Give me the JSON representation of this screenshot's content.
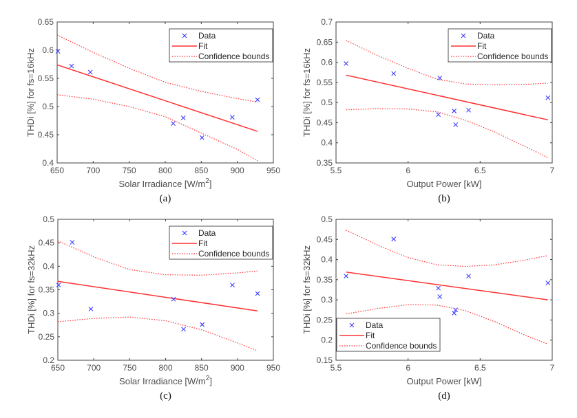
{
  "chart_data": [
    {
      "type": "scatter",
      "panel_caption": "(a)",
      "xlabel": "Solar Irradiance [W/m",
      "xlabel_superscript": "2",
      "xlabel_suffix": "]",
      "ylabel": "THDi [%] for fs=16kHz",
      "xlim": [
        650,
        950
      ],
      "ylim": [
        0.4,
        0.65
      ],
      "xticks": [
        "650",
        "700",
        "750",
        "800",
        "850",
        "900",
        "950"
      ],
      "yticks": [
        "0.4",
        "0.45",
        "0.5",
        "0.55",
        "0.6",
        "0.65"
      ],
      "legend": {
        "placement": "top-right",
        "entries": [
          "Data",
          "Fit",
          "Confidence bounds"
        ]
      },
      "data": {
        "x": [
          651,
          670,
          696,
          811,
          825,
          851,
          893,
          928
        ],
        "y": [
          0.598,
          0.572,
          0.561,
          0.47,
          0.48,
          0.445,
          0.481,
          0.512
        ]
      },
      "fit": {
        "x": [
          650,
          928
        ],
        "y": [
          0.574,
          0.456
        ]
      },
      "upper_bound": {
        "x": [
          650,
          700,
          750,
          800,
          850,
          900,
          928
        ],
        "y": [
          0.627,
          0.596,
          0.568,
          0.543,
          0.527,
          0.514,
          0.508
        ]
      },
      "lower_bound": {
        "x": [
          650,
          700,
          750,
          800,
          850,
          900,
          928
        ],
        "y": [
          0.521,
          0.513,
          0.5,
          0.482,
          0.453,
          0.424,
          0.404
        ]
      }
    },
    {
      "type": "scatter",
      "panel_caption": "(b)",
      "xlabel": "Output Power [kW]",
      "ylabel": "THDi [%] for fs=16kHz",
      "xlim": [
        5.5,
        7
      ],
      "ylim": [
        0.35,
        0.7
      ],
      "xticks": [
        "5.5",
        "6",
        "6.5",
        "7"
      ],
      "yticks": [
        "0.35",
        "0.4",
        "0.45",
        "0.5",
        "0.55",
        "0.6",
        "0.65",
        "0.7"
      ],
      "legend": {
        "placement": "top-right",
        "entries": [
          "Data",
          "Fit",
          "Confidence bounds"
        ]
      },
      "data": {
        "x": [
          5.57,
          5.9,
          6.22,
          6.21,
          6.32,
          6.33,
          6.42,
          6.97
        ],
        "y": [
          0.597,
          0.572,
          0.561,
          0.47,
          0.479,
          0.445,
          0.481,
          0.512
        ]
      },
      "fit": {
        "x": [
          5.57,
          6.97
        ],
        "y": [
          0.568,
          0.457
        ]
      },
      "upper_bound": {
        "x": [
          5.57,
          5.8,
          6.0,
          6.2,
          6.4,
          6.6,
          6.8,
          6.97
        ],
        "y": [
          0.654,
          0.615,
          0.585,
          0.558,
          0.546,
          0.544,
          0.545,
          0.548
        ]
      },
      "lower_bound": {
        "x": [
          5.57,
          5.8,
          6.0,
          6.2,
          6.4,
          6.6,
          6.8,
          6.97
        ],
        "y": [
          0.482,
          0.485,
          0.484,
          0.477,
          0.456,
          0.427,
          0.393,
          0.363
        ]
      }
    },
    {
      "type": "scatter",
      "panel_caption": "(c)",
      "xlabel": "Solar Irradiance [W/m",
      "xlabel_superscript": "2",
      "xlabel_suffix": "]",
      "ylabel": "THDi [%] for fs=32kHz",
      "xlim": [
        650,
        950
      ],
      "ylim": [
        0.2,
        0.5
      ],
      "xticks": [
        "650",
        "700",
        "750",
        "800",
        "850",
        "900",
        "950"
      ],
      "yticks": [
        "0.2",
        "0.25",
        "0.3",
        "0.35",
        "0.4",
        "0.45",
        "0.5"
      ],
      "legend": {
        "placement": "top-right",
        "entries": [
          "Data",
          "Fit",
          "Confidence bounds"
        ]
      },
      "data": {
        "x": [
          651,
          670,
          696,
          811,
          825,
          851,
          893,
          928
        ],
        "y": [
          0.36,
          0.451,
          0.309,
          0.33,
          0.266,
          0.276,
          0.36,
          0.342
        ]
      },
      "fit": {
        "x": [
          650,
          928
        ],
        "y": [
          0.368,
          0.305
        ]
      },
      "upper_bound": {
        "x": [
          650,
          700,
          750,
          800,
          850,
          900,
          928
        ],
        "y": [
          0.454,
          0.42,
          0.393,
          0.382,
          0.381,
          0.386,
          0.39
        ]
      },
      "lower_bound": {
        "x": [
          650,
          700,
          750,
          800,
          850,
          900,
          928
        ],
        "y": [
          0.282,
          0.289,
          0.292,
          0.284,
          0.265,
          0.237,
          0.22
        ]
      }
    },
    {
      "type": "scatter",
      "panel_caption": "(d)",
      "xlabel": "Output Power [kW]",
      "ylabel": "THDi [%] for fs=32kHz",
      "xlim": [
        5.5,
        7
      ],
      "ylim": [
        0.15,
        0.5
      ],
      "xticks": [
        "5.5",
        "6",
        "6.5",
        "7"
      ],
      "yticks": [
        "0.15",
        "0.2",
        "0.25",
        "0.3",
        "0.35",
        "0.4",
        "0.45",
        "0.5"
      ],
      "legend": {
        "placement": "bottom-left",
        "entries": [
          "Data",
          "Fit",
          "Confidence bounds"
        ]
      },
      "data": {
        "x": [
          5.57,
          5.9,
          6.21,
          6.22,
          6.32,
          6.33,
          6.42,
          6.97
        ],
        "y": [
          0.359,
          0.451,
          0.329,
          0.308,
          0.267,
          0.275,
          0.359,
          0.342
        ]
      },
      "fit": {
        "x": [
          5.57,
          6.97
        ],
        "y": [
          0.369,
          0.3
        ]
      },
      "upper_bound": {
        "x": [
          5.57,
          5.8,
          6.0,
          6.2,
          6.4,
          6.6,
          6.8,
          6.97
        ],
        "y": [
          0.473,
          0.434,
          0.405,
          0.387,
          0.383,
          0.387,
          0.398,
          0.41
        ]
      },
      "lower_bound": {
        "x": [
          5.57,
          5.8,
          6.0,
          6.2,
          6.4,
          6.6,
          6.8,
          6.97
        ],
        "y": [
          0.265,
          0.279,
          0.288,
          0.287,
          0.273,
          0.246,
          0.214,
          0.19
        ]
      }
    }
  ],
  "colors": {
    "data": "#3a3aff",
    "fit": "#ff3030",
    "axis": "#404040"
  }
}
